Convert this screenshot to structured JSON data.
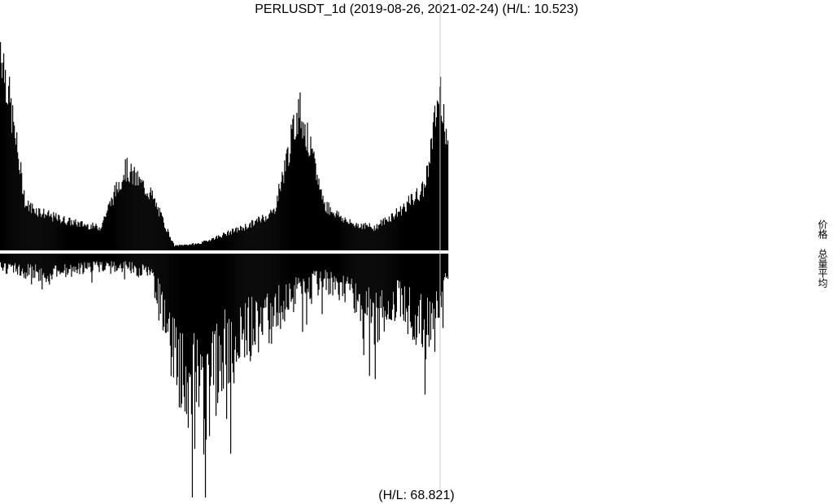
{
  "title": "PERLUSDT_1d (2019-08-26, 2021-02-24) (H/L: 10.523)",
  "bottom_label": "(H/L: 68.821)",
  "legend": [
    "价格",
    "总量平均"
  ],
  "colors": {
    "bars": "#000000",
    "background": "#ffffff",
    "marker_line": "#cccccc",
    "divider": "#ffffff"
  },
  "chart_data": [
    {
      "type": "area",
      "panel": "top",
      "series": [
        {
          "name": "价格"
        }
      ],
      "x_range": [
        "2019-08-26",
        "2021-02-24"
      ],
      "ylim": [
        0,
        1
      ],
      "marker_date": "2021-02-15",
      "x": [
        "2019-08-26",
        "2019-09-26",
        "2019-10-26",
        "2019-11-26",
        "2019-12-26",
        "2020-01-26",
        "2020-02-26",
        "2020-03-26",
        "2020-04-26",
        "2020-05-26",
        "2020-06-26",
        "2020-07-26",
        "2020-08-26",
        "2020-09-26",
        "2020-10-26",
        "2020-11-26",
        "2020-12-26",
        "2021-01-26",
        "2021-02-15",
        "2021-02-24"
      ],
      "values": [
        0.92,
        0.2,
        0.15,
        0.12,
        0.1,
        0.36,
        0.25,
        0.02,
        0.03,
        0.07,
        0.11,
        0.17,
        0.63,
        0.2,
        0.12,
        0.1,
        0.17,
        0.27,
        0.72,
        0.46
      ]
    },
    {
      "type": "bar",
      "panel": "bottom",
      "series": [
        {
          "name": "总量平均"
        }
      ],
      "x_range": [
        "2019-08-26",
        "2021-02-24"
      ],
      "ylim": [
        0,
        1
      ],
      "x": [
        "2019-08-26",
        "2019-09-26",
        "2019-10-26",
        "2019-11-26",
        "2019-12-26",
        "2020-01-26",
        "2020-02-26",
        "2020-03-26",
        "2020-04-26",
        "2020-05-26",
        "2020-06-26",
        "2020-07-26",
        "2020-08-26",
        "2020-09-26",
        "2020-10-26",
        "2020-11-26",
        "2020-12-26",
        "2021-01-26",
        "2021-02-15",
        "2021-02-24"
      ],
      "values": [
        0.06,
        0.08,
        0.1,
        0.07,
        0.06,
        0.06,
        0.09,
        0.45,
        0.68,
        0.45,
        0.35,
        0.28,
        0.16,
        0.13,
        0.16,
        0.3,
        0.2,
        0.35,
        0.2,
        0.1
      ]
    }
  ]
}
